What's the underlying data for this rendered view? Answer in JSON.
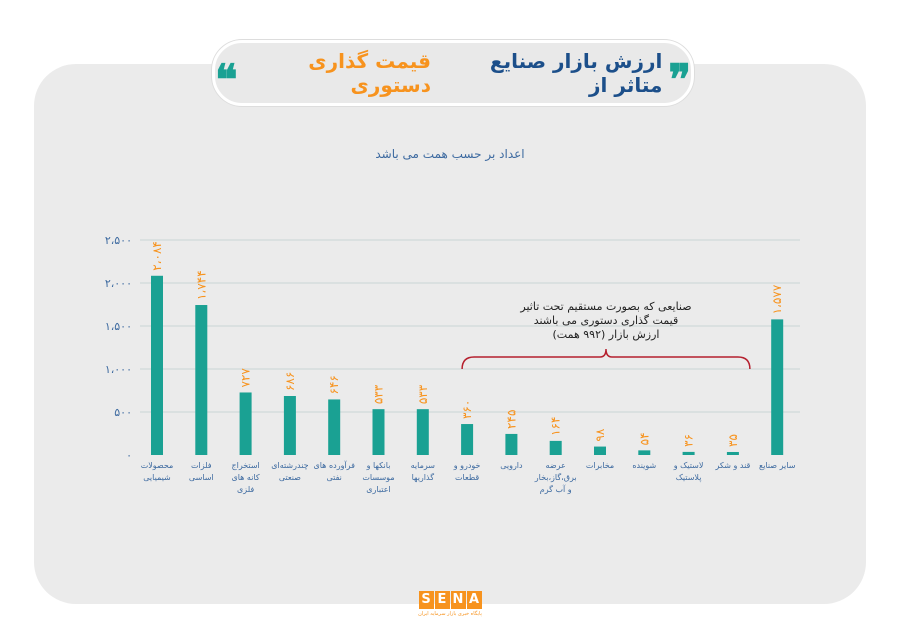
{
  "header": {
    "title_part1": "ارزش بازار صنایع متاثر از",
    "title_part2": "قیمت گذاری دستوری",
    "quote_open": "❞",
    "quote_close": "❝"
  },
  "chart_data": {
    "type": "bar",
    "subtitle": "اعداد بر حسب همت می باشد",
    "categories": [
      [
        "محصولات",
        "شیمیایی"
      ],
      [
        "فلزات",
        "اساسی"
      ],
      [
        "استخراج",
        "کانه های",
        "فلزی"
      ],
      [
        "چندرشته‌ای",
        "صنعتی"
      ],
      [
        "فرآورده های",
        "نفتی"
      ],
      [
        "بانکها و",
        "موسسات",
        "اعتباری"
      ],
      [
        "سرمایه",
        "گذاریها"
      ],
      [
        "خودرو و",
        "قطعات"
      ],
      [
        "دارویی"
      ],
      [
        "عرضه",
        "برق،گاز،بخار",
        "و آب گرم"
      ],
      [
        "مخابرات"
      ],
      [
        "شوینده"
      ],
      [
        "لاستیک و",
        "پلاستیک"
      ],
      [
        "قند و شکر"
      ],
      [
        "سایر صنایع"
      ]
    ],
    "values": [
      2084,
      1744,
      727,
      686,
      646,
      533,
      533,
      360,
      245,
      164,
      98,
      54,
      36,
      35,
      1577
    ],
    "value_labels": [
      "۲،۰۸۴",
      "۱،۷۴۴",
      "۷۲۷",
      "۶۸۶",
      "۶۴۶",
      "۵۳۳",
      "۵۳۳",
      "۳۶۰",
      "۲۴۵",
      "۱۶۴",
      "۹۸",
      "۵۴",
      "۳۶",
      "۳۵",
      "۱،۵۷۷"
    ],
    "ylim": [
      0,
      2500
    ],
    "yticks": [
      0,
      500,
      1000,
      1500,
      2000,
      2500
    ],
    "ytick_labels": [
      "۰",
      "۵۰۰",
      "۱،۰۰۰",
      "۱،۵۰۰",
      "۲،۰۰۰",
      "۲،۵۰۰"
    ],
    "grid": true,
    "annotation": {
      "lines": [
        "صنایعی که بصورت مستقیم تحت تاثیر",
        "قیمت گذاری دستوری می باشند",
        "ارزش بازار (۹۹۲ همت)"
      ],
      "bracket_from": 7,
      "bracket_to": 13
    },
    "colors": {
      "bar": "#1aa193",
      "value_label": "#f7931e",
      "axis_text": "#3d6aa0",
      "bracket": "#b5202e",
      "grid": "#d5dcdc"
    }
  },
  "footer": {
    "logo_letters": [
      "S",
      "E",
      "N",
      "A"
    ],
    "tagline": "پایگاه خبری بازار سرمایه ایران"
  }
}
